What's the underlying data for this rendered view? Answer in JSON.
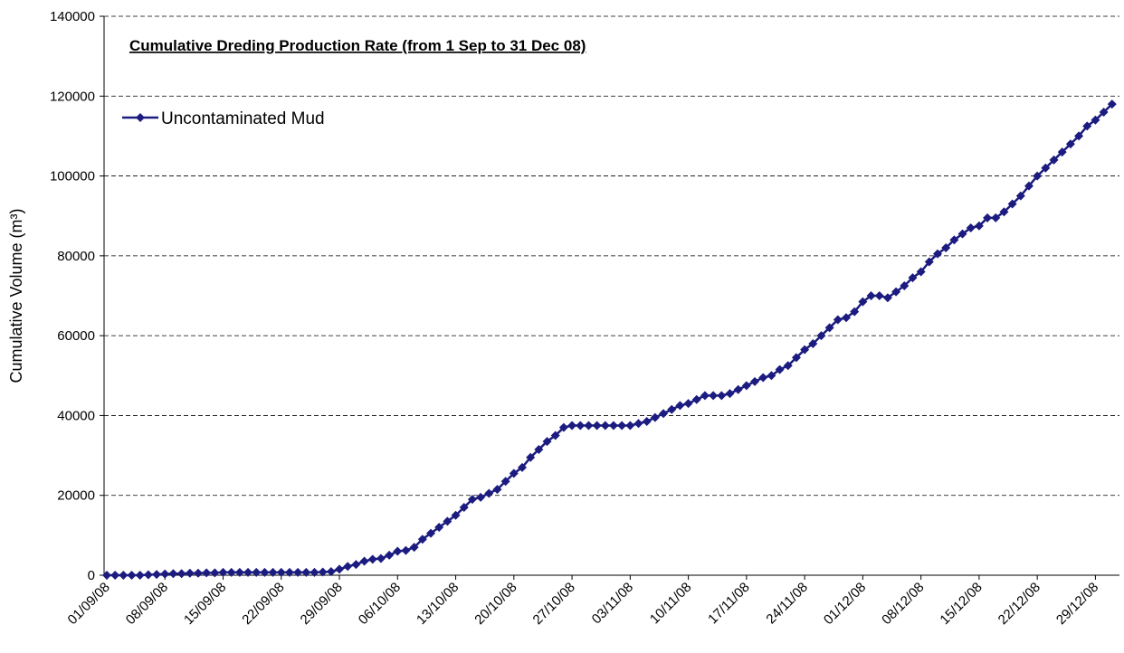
{
  "chart_data": {
    "type": "line",
    "title": "Cumulative Dreding Production Rate (from 1 Sep to 31 Dec 08)",
    "y_label": "Cumulative Volume (m³)",
    "categories": [
      "01/09/08",
      null,
      null,
      null,
      null,
      null,
      null,
      "08/09/08",
      null,
      null,
      null,
      null,
      null,
      null,
      "15/09/08",
      null,
      null,
      null,
      null,
      null,
      null,
      "22/09/08",
      null,
      null,
      null,
      null,
      null,
      null,
      "29/09/08",
      null,
      null,
      null,
      null,
      null,
      null,
      "06/10/08",
      null,
      null,
      null,
      null,
      null,
      null,
      "13/10/08",
      null,
      null,
      null,
      null,
      null,
      null,
      "20/10/08",
      null,
      null,
      null,
      null,
      null,
      null,
      "27/10/08",
      null,
      null,
      null,
      null,
      null,
      null,
      "03/11/08",
      null,
      null,
      null,
      null,
      null,
      null,
      "10/11/08",
      null,
      null,
      null,
      null,
      null,
      null,
      "17/11/08",
      null,
      null,
      null,
      null,
      null,
      null,
      "24/11/08",
      null,
      null,
      null,
      null,
      null,
      null,
      "01/12/08",
      null,
      null,
      null,
      null,
      null,
      null,
      "08/12/08",
      null,
      null,
      null,
      null,
      null,
      null,
      "15/12/08",
      null,
      null,
      null,
      null,
      null,
      null,
      "22/12/08",
      null,
      null,
      null,
      null,
      null,
      null,
      "29/12/08",
      null,
      null
    ],
    "series": [
      {
        "name": "Uncontaminated Mud",
        "color": "#1c1c80",
        "values": [
          0,
          0,
          0,
          0,
          0,
          100,
          200,
          300,
          400,
          400,
          500,
          500,
          600,
          600,
          700,
          700,
          700,
          700,
          700,
          700,
          700,
          700,
          700,
          700,
          700,
          700,
          800,
          900,
          1500,
          2200,
          2700,
          3500,
          4000,
          4200,
          5000,
          6000,
          6200,
          7000,
          9000,
          10500,
          12000,
          13500,
          15000,
          17000,
          19000,
          19500,
          20500,
          21500,
          23500,
          25500,
          27000,
          29500,
          31500,
          33500,
          35000,
          37000,
          37500,
          37500,
          37500,
          37500,
          37500,
          37500,
          37500,
          37500,
          38000,
          38500,
          39500,
          40500,
          41500,
          42500,
          43000,
          44000,
          45000,
          45000,
          45000,
          45500,
          46500,
          47500,
          48500,
          49500,
          50000,
          51500,
          52500,
          54500,
          56500,
          58000,
          60000,
          62000,
          64000,
          64500,
          66000,
          68500,
          70000,
          70000,
          69500,
          71000,
          72500,
          74500,
          76000,
          78500,
          80500,
          82000,
          84000,
          85500,
          87000,
          87500,
          89500,
          89500,
          91000,
          93000,
          95000,
          97500,
          100000,
          102000,
          104000,
          106000,
          108000,
          110000,
          112500,
          114000,
          116000,
          118000
        ]
      }
    ],
    "ylim": [
      0,
      140000
    ],
    "yticks": [
      0,
      20000,
      40000,
      60000,
      80000,
      100000,
      120000,
      140000
    ],
    "grid": true,
    "legend": "top-left"
  }
}
